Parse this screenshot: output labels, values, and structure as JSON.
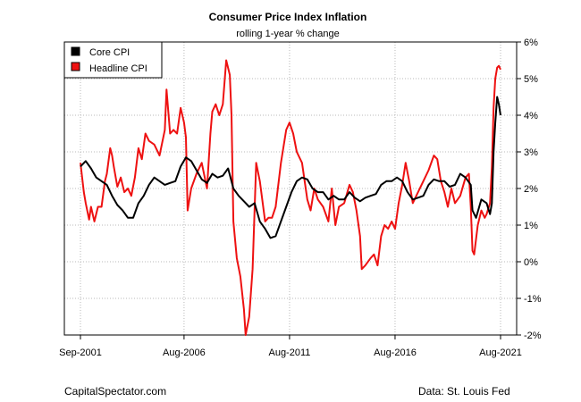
{
  "footer": {
    "left": "CapitalSpectator.com",
    "right": "Data: St. Louis Fed"
  },
  "chart_data": {
    "type": "line",
    "title": "Consumer Price Index Inflation",
    "subtitle": "rolling 1-year % change",
    "xlabel": "",
    "ylabel": "",
    "x_ticks": [
      "Sep-2001",
      "Aug-2006",
      "Aug-2011",
      "Aug-2016",
      "Aug-2021"
    ],
    "x_tick_years": [
      2001.67,
      2006.58,
      2011.58,
      2016.58,
      2021.58
    ],
    "xlim": [
      2001.67,
      2021.58
    ],
    "y_ticks": [
      "6%",
      "5%",
      "4%",
      "3%",
      "2%",
      "1%",
      "0%",
      "-1%",
      "-2%"
    ],
    "y_tick_values": [
      6,
      5,
      4,
      3,
      2,
      1,
      0,
      -1,
      -2
    ],
    "ylim": [
      -2,
      6
    ],
    "y_axis_side": "right",
    "grid": true,
    "legend_position": "top-left",
    "colors": {
      "core": "#000000",
      "headline": "#ee1111"
    },
    "series": [
      {
        "name": "Core CPI",
        "points": [
          [
            2001.67,
            2.6
          ],
          [
            2001.92,
            2.75
          ],
          [
            2002.17,
            2.55
          ],
          [
            2002.42,
            2.3
          ],
          [
            2002.67,
            2.2
          ],
          [
            2002.92,
            2.1
          ],
          [
            2003.17,
            1.8
          ],
          [
            2003.42,
            1.55
          ],
          [
            2003.67,
            1.4
          ],
          [
            2003.92,
            1.2
          ],
          [
            2004.17,
            1.2
          ],
          [
            2004.42,
            1.6
          ],
          [
            2004.67,
            1.8
          ],
          [
            2004.92,
            2.1
          ],
          [
            2005.17,
            2.3
          ],
          [
            2005.42,
            2.2
          ],
          [
            2005.67,
            2.1
          ],
          [
            2005.92,
            2.15
          ],
          [
            2006.17,
            2.2
          ],
          [
            2006.42,
            2.6
          ],
          [
            2006.67,
            2.85
          ],
          [
            2006.92,
            2.75
          ],
          [
            2007.17,
            2.5
          ],
          [
            2007.42,
            2.25
          ],
          [
            2007.67,
            2.15
          ],
          [
            2007.92,
            2.4
          ],
          [
            2008.17,
            2.3
          ],
          [
            2008.42,
            2.35
          ],
          [
            2008.67,
            2.55
          ],
          [
            2008.92,
            2.0
          ],
          [
            2009.17,
            1.8
          ],
          [
            2009.42,
            1.65
          ],
          [
            2009.67,
            1.5
          ],
          [
            2009.92,
            1.6
          ],
          [
            2010.17,
            1.1
          ],
          [
            2010.42,
            0.9
          ],
          [
            2010.67,
            0.65
          ],
          [
            2010.92,
            0.7
          ],
          [
            2011.17,
            1.1
          ],
          [
            2011.42,
            1.5
          ],
          [
            2011.67,
            1.9
          ],
          [
            2011.92,
            2.2
          ],
          [
            2012.17,
            2.3
          ],
          [
            2012.42,
            2.25
          ],
          [
            2012.67,
            2.0
          ],
          [
            2012.92,
            1.9
          ],
          [
            2013.17,
            1.9
          ],
          [
            2013.42,
            1.7
          ],
          [
            2013.67,
            1.8
          ],
          [
            2013.92,
            1.7
          ],
          [
            2014.17,
            1.7
          ],
          [
            2014.42,
            1.9
          ],
          [
            2014.67,
            1.75
          ],
          [
            2014.92,
            1.65
          ],
          [
            2015.17,
            1.75
          ],
          [
            2015.42,
            1.8
          ],
          [
            2015.67,
            1.85
          ],
          [
            2015.92,
            2.1
          ],
          [
            2016.17,
            2.2
          ],
          [
            2016.42,
            2.2
          ],
          [
            2016.67,
            2.3
          ],
          [
            2016.92,
            2.2
          ],
          [
            2017.17,
            1.9
          ],
          [
            2017.42,
            1.7
          ],
          [
            2017.67,
            1.75
          ],
          [
            2017.92,
            1.8
          ],
          [
            2018.17,
            2.1
          ],
          [
            2018.42,
            2.25
          ],
          [
            2018.67,
            2.2
          ],
          [
            2018.92,
            2.2
          ],
          [
            2019.17,
            2.05
          ],
          [
            2019.42,
            2.1
          ],
          [
            2019.67,
            2.4
          ],
          [
            2019.92,
            2.3
          ],
          [
            2020.17,
            2.1
          ],
          [
            2020.25,
            1.4
          ],
          [
            2020.42,
            1.2
          ],
          [
            2020.67,
            1.7
          ],
          [
            2020.92,
            1.6
          ],
          [
            2021.08,
            1.3
          ],
          [
            2021.17,
            1.6
          ],
          [
            2021.25,
            3.0
          ],
          [
            2021.33,
            3.8
          ],
          [
            2021.42,
            4.5
          ],
          [
            2021.5,
            4.3
          ],
          [
            2021.58,
            4.0
          ]
        ]
      },
      {
        "name": "Headline CPI",
        "points": [
          [
            2001.67,
            2.7
          ],
          [
            2001.83,
            1.9
          ],
          [
            2001.92,
            1.6
          ],
          [
            2002.08,
            1.15
          ],
          [
            2002.17,
            1.5
          ],
          [
            2002.33,
            1.1
          ],
          [
            2002.5,
            1.5
          ],
          [
            2002.67,
            1.5
          ],
          [
            2002.83,
            2.2
          ],
          [
            2002.92,
            2.4
          ],
          [
            2003.08,
            3.1
          ],
          [
            2003.17,
            2.9
          ],
          [
            2003.25,
            2.6
          ],
          [
            2003.42,
            2.05
          ],
          [
            2003.58,
            2.3
          ],
          [
            2003.75,
            1.9
          ],
          [
            2003.92,
            2.0
          ],
          [
            2004.08,
            1.8
          ],
          [
            2004.25,
            2.3
          ],
          [
            2004.42,
            3.1
          ],
          [
            2004.58,
            2.8
          ],
          [
            2004.75,
            3.5
          ],
          [
            2004.92,
            3.3
          ],
          [
            2005.17,
            3.2
          ],
          [
            2005.42,
            2.9
          ],
          [
            2005.67,
            3.6
          ],
          [
            2005.75,
            4.7
          ],
          [
            2005.92,
            3.5
          ],
          [
            2006.08,
            3.6
          ],
          [
            2006.25,
            3.5
          ],
          [
            2006.42,
            4.2
          ],
          [
            2006.58,
            3.8
          ],
          [
            2006.67,
            3.4
          ],
          [
            2006.75,
            1.4
          ],
          [
            2006.92,
            2.0
          ],
          [
            2007.17,
            2.4
          ],
          [
            2007.42,
            2.7
          ],
          [
            2007.67,
            2.0
          ],
          [
            2007.83,
            3.5
          ],
          [
            2007.92,
            4.1
          ],
          [
            2008.08,
            4.3
          ],
          [
            2008.25,
            4.0
          ],
          [
            2008.42,
            4.3
          ],
          [
            2008.58,
            5.5
          ],
          [
            2008.75,
            5.1
          ],
          [
            2008.83,
            4.0
          ],
          [
            2008.92,
            1.1
          ],
          [
            2009.08,
            0.1
          ],
          [
            2009.25,
            -0.4
          ],
          [
            2009.42,
            -1.3
          ],
          [
            2009.5,
            -2.0
          ],
          [
            2009.67,
            -1.5
          ],
          [
            2009.83,
            -0.2
          ],
          [
            2010.0,
            2.7
          ],
          [
            2010.17,
            2.2
          ],
          [
            2010.42,
            1.1
          ],
          [
            2010.58,
            1.2
          ],
          [
            2010.75,
            1.2
          ],
          [
            2010.92,
            1.5
          ],
          [
            2011.17,
            2.7
          ],
          [
            2011.42,
            3.6
          ],
          [
            2011.58,
            3.8
          ],
          [
            2011.75,
            3.5
          ],
          [
            2011.92,
            3.0
          ],
          [
            2012.17,
            2.7
          ],
          [
            2012.42,
            1.7
          ],
          [
            2012.58,
            1.4
          ],
          [
            2012.75,
            2.0
          ],
          [
            2012.92,
            1.7
          ],
          [
            2013.17,
            1.5
          ],
          [
            2013.42,
            1.1
          ],
          [
            2013.58,
            2.0
          ],
          [
            2013.75,
            1.0
          ],
          [
            2013.92,
            1.5
          ],
          [
            2014.17,
            1.6
          ],
          [
            2014.42,
            2.1
          ],
          [
            2014.58,
            1.9
          ],
          [
            2014.75,
            1.4
          ],
          [
            2014.92,
            0.7
          ],
          [
            2015.0,
            -0.2
          ],
          [
            2015.17,
            -0.1
          ],
          [
            2015.42,
            0.1
          ],
          [
            2015.58,
            0.2
          ],
          [
            2015.75,
            -0.1
          ],
          [
            2015.92,
            0.7
          ],
          [
            2016.08,
            1.0
          ],
          [
            2016.25,
            0.9
          ],
          [
            2016.42,
            1.1
          ],
          [
            2016.58,
            0.9
          ],
          [
            2016.75,
            1.6
          ],
          [
            2016.92,
            2.1
          ],
          [
            2017.08,
            2.7
          ],
          [
            2017.25,
            2.2
          ],
          [
            2017.42,
            1.6
          ],
          [
            2017.67,
            1.9
          ],
          [
            2017.92,
            2.2
          ],
          [
            2018.17,
            2.5
          ],
          [
            2018.42,
            2.9
          ],
          [
            2018.58,
            2.8
          ],
          [
            2018.75,
            2.2
          ],
          [
            2018.92,
            1.9
          ],
          [
            2019.08,
            1.5
          ],
          [
            2019.25,
            2.0
          ],
          [
            2019.42,
            1.6
          ],
          [
            2019.67,
            1.8
          ],
          [
            2019.92,
            2.3
          ],
          [
            2020.08,
            2.4
          ],
          [
            2020.17,
            1.5
          ],
          [
            2020.25,
            0.3
          ],
          [
            2020.33,
            0.2
          ],
          [
            2020.5,
            1.0
          ],
          [
            2020.67,
            1.4
          ],
          [
            2020.83,
            1.2
          ],
          [
            2020.92,
            1.3
          ],
          [
            2021.08,
            1.6
          ],
          [
            2021.17,
            2.6
          ],
          [
            2021.25,
            4.2
          ],
          [
            2021.33,
            5.0
          ],
          [
            2021.42,
            5.3
          ],
          [
            2021.5,
            5.35
          ],
          [
            2021.58,
            5.25
          ]
        ]
      }
    ]
  }
}
